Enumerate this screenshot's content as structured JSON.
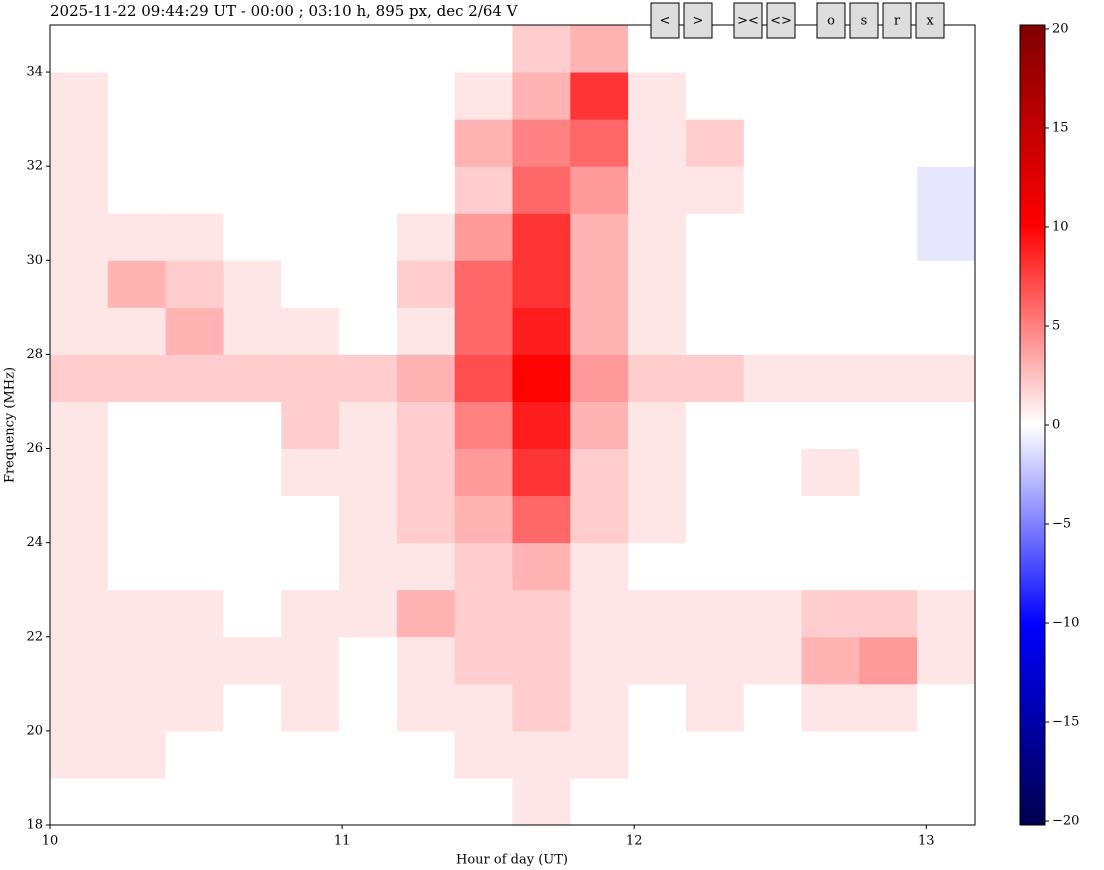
{
  "chart_data": {
    "type": "heatmap",
    "title": "2025-11-22 09:44:29 UT - 00:00 ; 03:10 h, 895 px, dec 2/64 V",
    "xlabel": "Hour of day (UT)",
    "ylabel": "Frequency (MHz)",
    "xlim": [
      10,
      13.1667
    ],
    "xticks": [
      10,
      11,
      12,
      13
    ],
    "ylim": [
      18,
      35
    ],
    "yticks": [
      18,
      20,
      22,
      24,
      26,
      28,
      30,
      32,
      34
    ],
    "colormap": "seismic",
    "clim": [
      -20.2,
      20.2
    ],
    "cticks": [
      {
        "value": -20,
        "label": "−20"
      },
      {
        "value": -15,
        "label": "−15"
      },
      {
        "value": -10,
        "label": "−10"
      },
      {
        "value": -5,
        "label": "−5"
      },
      0,
      5,
      10,
      15,
      20
    ],
    "z": [
      [
        0,
        0,
        0,
        0,
        0,
        0,
        0,
        0,
        1,
        0,
        0,
        0,
        0,
        0,
        0,
        0
      ],
      [
        1,
        1,
        0,
        0,
        0,
        0,
        0,
        1,
        1,
        1,
        0,
        0,
        0,
        0,
        0,
        0
      ],
      [
        1,
        1,
        1,
        0,
        1,
        0,
        1,
        1,
        2,
        1,
        0,
        1,
        0,
        1,
        1,
        0
      ],
      [
        1,
        1,
        1,
        1,
        1,
        0,
        1,
        2,
        2,
        1,
        1,
        1,
        1,
        3,
        4,
        1
      ],
      [
        1,
        1,
        1,
        0,
        1,
        1,
        3,
        2,
        2,
        1,
        1,
        1,
        1,
        2,
        2,
        1
      ],
      [
        1,
        0,
        0,
        0,
        0,
        1,
        1,
        2,
        3,
        1,
        0,
        0,
        0,
        0,
        0,
        0
      ],
      [
        1,
        0,
        0,
        0,
        0,
        1,
        2,
        3,
        6,
        2,
        1,
        0,
        0,
        0,
        0,
        0
      ],
      [
        1,
        0,
        0,
        0,
        1,
        1,
        2,
        4,
        8,
        2,
        1,
        0,
        0,
        1,
        0,
        0
      ],
      [
        1,
        0,
        0,
        0,
        2,
        1,
        2,
        5,
        9,
        3,
        1,
        0,
        0,
        0,
        0,
        0
      ],
      [
        2,
        2,
        2,
        2,
        2,
        2,
        3,
        7,
        10,
        4,
        2,
        2,
        1,
        1,
        1,
        1
      ],
      [
        1,
        1,
        3,
        1,
        1,
        0,
        1,
        6,
        9,
        3,
        1,
        0,
        0,
        0,
        0,
        0
      ],
      [
        1,
        3,
        2,
        1,
        0,
        0,
        2,
        6,
        8,
        3,
        1,
        0,
        0,
        0,
        0,
        0
      ],
      [
        1,
        1,
        1,
        0,
        0,
        0,
        1,
        4,
        8,
        3,
        1,
        0,
        0,
        0,
        0,
        -1
      ],
      [
        1,
        0,
        0,
        0,
        0,
        0,
        0,
        2,
        6,
        4,
        1,
        1,
        0,
        0,
        0,
        -1
      ],
      [
        1,
        0,
        0,
        0,
        0,
        0,
        0,
        3,
        5,
        6,
        1,
        2,
        0,
        0,
        0,
        0
      ],
      [
        1,
        0,
        0,
        0,
        0,
        0,
        0,
        1,
        3,
        8,
        1,
        0,
        0,
        0,
        0,
        0
      ],
      [
        0,
        0,
        0,
        0,
        0,
        0,
        0,
        0,
        2,
        3,
        0,
        0,
        0,
        0,
        0,
        0
      ]
    ]
  },
  "toolbar": [
    "<",
    ">",
    "><",
    "<>",
    "o",
    "s",
    "r",
    "x"
  ]
}
